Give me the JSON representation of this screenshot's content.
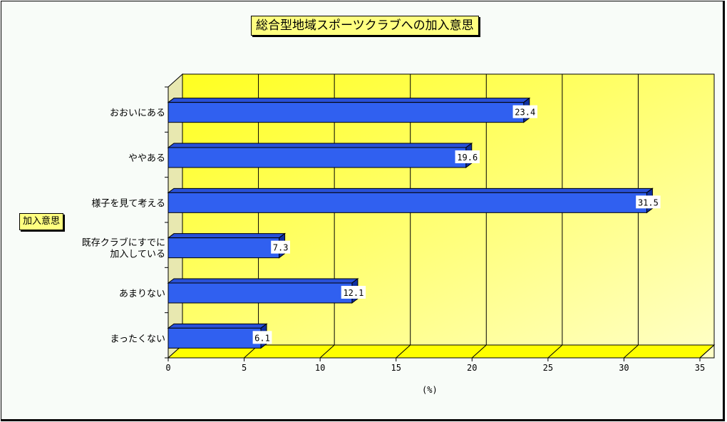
{
  "chart_data": {
    "type": "bar",
    "orientation": "horizontal",
    "title": "総合型地域スポーツクラブへの加入意思",
    "ylabel": "加入意思",
    "xlabel": "(%)",
    "categories": [
      [
        "おおいにある"
      ],
      [
        "ややある"
      ],
      [
        "様子を見て考える"
      ],
      [
        "既存クラブにすでに",
        "加入している"
      ],
      [
        "あまりない"
      ],
      [
        "まったくない"
      ]
    ],
    "values": [
      23.4,
      19.6,
      31.5,
      7.3,
      12.1,
      6.1
    ],
    "value_labels": [
      "23.4",
      "19.6",
      "31.5",
      "7.3",
      "12.1",
      "6.1"
    ],
    "xlim": [
      0,
      35
    ],
    "xticks": [
      "0",
      "5",
      "10",
      "15",
      "20",
      "25",
      "30",
      "35"
    ],
    "grid": true,
    "legend": "none",
    "colors": {
      "bar": "#3060f0",
      "bar_top": "#2850d8",
      "bar_side": "#1030a0",
      "plot_bg": "#ffff30",
      "floor": "#ffff00",
      "title_bg": "#ffff80"
    }
  }
}
